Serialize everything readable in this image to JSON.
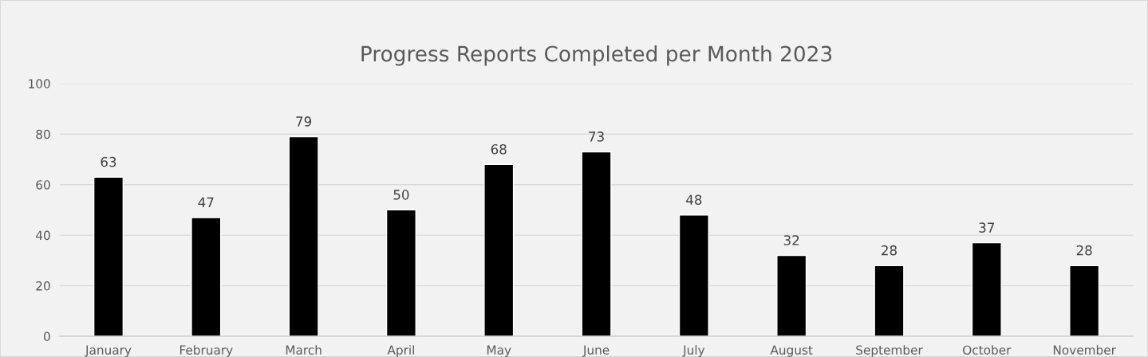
{
  "chart_data": {
    "type": "bar",
    "title": "Progress Reports Completed per Month 2023",
    "categories": [
      "January",
      "February",
      "March",
      "April",
      "May",
      "June",
      "July",
      "August",
      "September",
      "October",
      "November"
    ],
    "values": [
      63,
      47,
      79,
      50,
      68,
      73,
      48,
      32,
      28,
      37,
      28
    ],
    "color": "#000000",
    "ylim": [
      0,
      100
    ],
    "yticks": [
      0,
      20,
      40,
      60,
      80,
      100
    ],
    "grid": "y",
    "data_labels": true
  }
}
